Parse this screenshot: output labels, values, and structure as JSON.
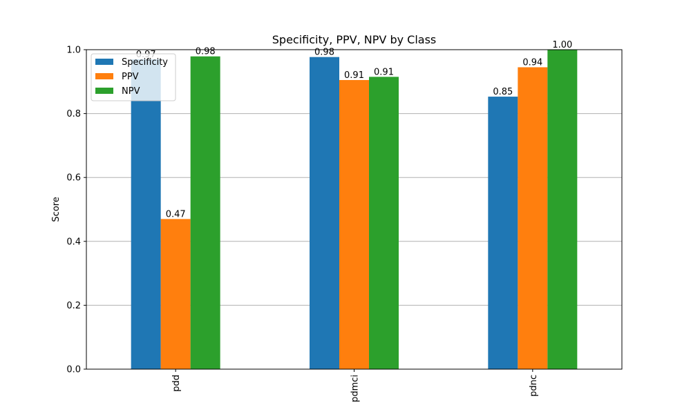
{
  "chart_data": {
    "type": "bar",
    "title": "Specificity, PPV, NPV by Class",
    "xlabel": "",
    "ylabel": "Score",
    "categories": [
      "pdd",
      "pdmci",
      "pdnc"
    ],
    "series": [
      {
        "name": "Specificity",
        "color": "#1f77b4",
        "values": [
          0.97,
          0.977,
          0.853
        ],
        "labels": [
          "0.97",
          "0.98",
          "0.85"
        ]
      },
      {
        "name": "PPV",
        "color": "#ff7f0e",
        "values": [
          0.47,
          0.905,
          0.945
        ],
        "labels": [
          "0.47",
          "0.91",
          "0.94"
        ]
      },
      {
        "name": "NPV",
        "color": "#2ca02c",
        "values": [
          0.979,
          0.915,
          1.0
        ],
        "labels": [
          "0.98",
          "0.91",
          "1.00"
        ]
      }
    ],
    "ylim": [
      0,
      1.0
    ],
    "yticks": [
      "0.0",
      "0.2",
      "0.4",
      "0.6",
      "0.8",
      "1.0"
    ],
    "grid": "y",
    "legend_position": "upper-left"
  }
}
